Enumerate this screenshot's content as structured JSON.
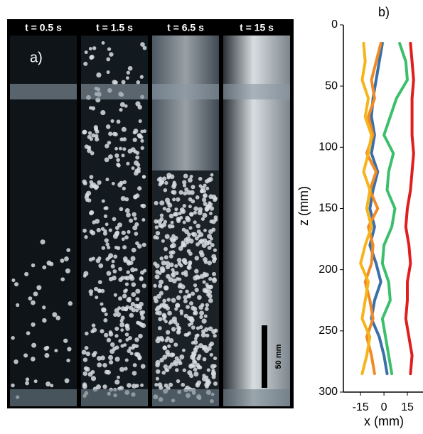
{
  "photo_panel": {
    "label": "a)",
    "times": [
      "t = 0.5 s",
      "t = 1.5 s",
      "t = 6.5 s",
      "t = 15 s"
    ],
    "scale_bar": "50 mm"
  },
  "chart_data": {
    "type": "line",
    "title": "b)",
    "x_label": "x (mm)",
    "y_label": "z (mm)",
    "z": [
      15,
      30,
      45,
      60,
      75,
      90,
      105,
      120,
      135,
      150,
      165,
      180,
      195,
      210,
      225,
      240,
      255,
      270,
      285
    ],
    "series": [
      {
        "color": "#3a6fa8",
        "values": [
          -1,
          -3,
          -5,
          -7,
          -8,
          -6,
          -8,
          -4,
          -7,
          -9,
          -6,
          -9,
          -5,
          -2,
          -6,
          -8,
          -3,
          0,
          2
        ]
      },
      {
        "color": "#f28a24",
        "values": [
          -2,
          -5,
          -8,
          -6,
          -10,
          -7,
          -11,
          -5,
          -9,
          -4,
          -10,
          -7,
          -8,
          -12,
          -9,
          -7,
          -11,
          -8,
          -6
        ]
      },
      {
        "color": "#f7b41a",
        "values": [
          -13,
          -12,
          -14,
          -10,
          -12,
          -8,
          -10,
          -13,
          -9,
          -11,
          -8,
          -12,
          -15,
          -10,
          -12,
          -14,
          -9,
          -11,
          -14
        ]
      },
      {
        "color": "#3cbf6b",
        "values": [
          10,
          14,
          15,
          8,
          4,
          0,
          6,
          3,
          2,
          7,
          5,
          0,
          -1,
          3,
          4,
          -1,
          1,
          3,
          5
        ]
      },
      {
        "color": "#e01e1e",
        "values": [
          17,
          18,
          19,
          18,
          18,
          18,
          19,
          18,
          17,
          15,
          14,
          16,
          17,
          15,
          15,
          14,
          16,
          18,
          17
        ]
      }
    ],
    "xlim": [
      -26,
      25
    ],
    "ylim": [
      0,
      300
    ],
    "y_inverted": true,
    "xticks": [
      -15,
      0,
      15
    ],
    "yticks": [
      0,
      50,
      100,
      150,
      200,
      250,
      300
    ]
  }
}
